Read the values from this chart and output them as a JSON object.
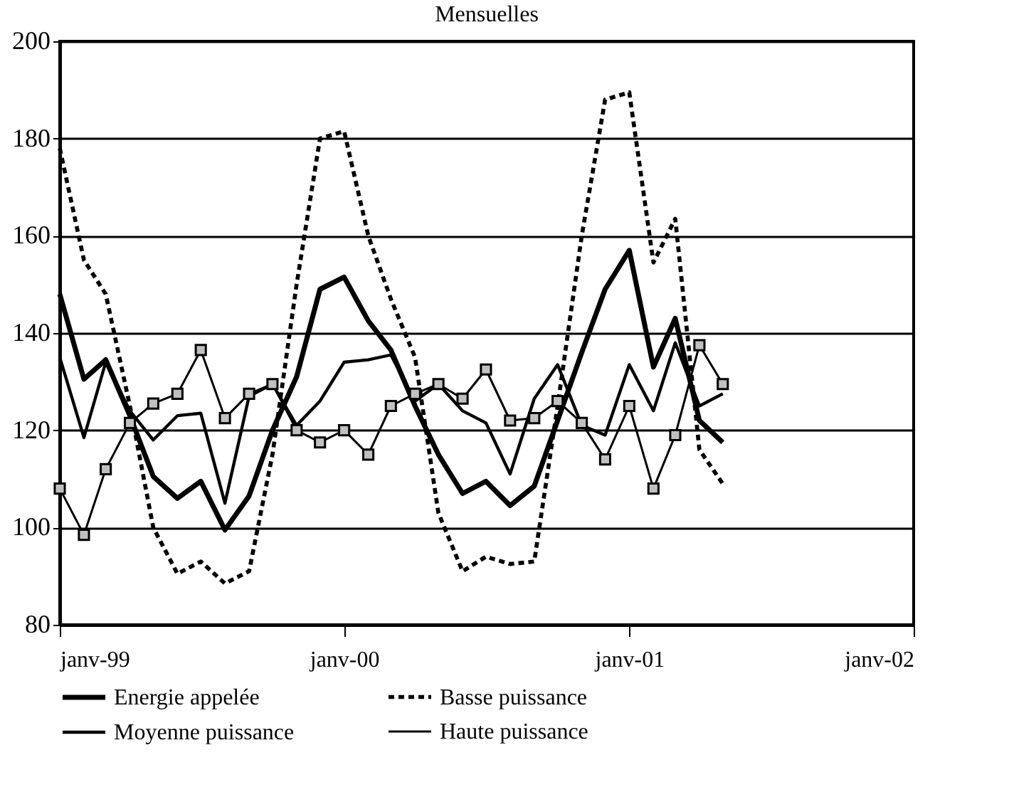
{
  "chart_data": {
    "type": "line",
    "title": "Mensuelles",
    "x": [
      "1999-01",
      "1999-02",
      "1999-03",
      "1999-04",
      "1999-05",
      "1999-06",
      "1999-07",
      "1999-08",
      "1999-09",
      "1999-10",
      "1999-11",
      "1999-12",
      "2000-01",
      "2000-02",
      "2000-03",
      "2000-04",
      "2000-05",
      "2000-06",
      "2000-07",
      "2000-08",
      "2000-09",
      "2000-10",
      "2000-11",
      "2000-12",
      "2001-01",
      "2001-02",
      "2001-03",
      "2001-04",
      "2001-05"
    ],
    "series": [
      {
        "name": "Energie appelée",
        "color": "#000000",
        "line_style": "solid",
        "marker": "none",
        "values": [
          148,
          130.5,
          134.5,
          123,
          110.5,
          106,
          109.5,
          99.5,
          106.5,
          120,
          131,
          149,
          151.5,
          142.5,
          136.5,
          125,
          115,
          107,
          109.5,
          104.5,
          108.5,
          122,
          136,
          149,
          157,
          133,
          143,
          122,
          117.5
        ]
      },
      {
        "name": "Basse puissance",
        "color": "#000000",
        "line_style": "dashed",
        "marker": "none",
        "values": [
          178,
          155,
          148,
          125,
          100,
          90.5,
          93,
          88.5,
          91,
          115,
          150,
          180,
          181.5,
          160,
          147,
          135,
          103,
          91,
          94,
          92.5,
          93,
          125,
          160,
          188,
          189.5,
          154.5,
          163.5,
          116,
          109
        ]
      },
      {
        "name": "Moyenne puissance",
        "color": "#000000",
        "line_style": "solid",
        "marker": "none",
        "values": [
          135,
          118.5,
          134,
          124,
          118,
          123,
          123.5,
          105,
          127,
          129.5,
          121,
          126,
          134,
          134.5,
          135.5,
          126,
          129.5,
          124,
          121.5,
          111,
          126.5,
          133.5,
          121,
          119,
          133.5,
          124,
          138,
          125,
          127.5
        ]
      },
      {
        "name": "Haute puissance",
        "color": "#000000",
        "line_style": "solid",
        "marker": "square",
        "values": [
          108,
          98.5,
          112,
          121.5,
          125.5,
          127.5,
          136.5,
          122.5,
          127.5,
          129.5,
          120,
          117.5,
          120,
          115,
          125,
          127.5,
          129.5,
          126.5,
          132.5,
          122,
          122.5,
          126,
          121.5,
          114,
          125,
          108,
          119,
          137.5,
          129.5
        ]
      }
    ],
    "xlim": [
      "1999-01",
      "2002-01"
    ],
    "xticks": [
      {
        "value": "1999-01",
        "label": "janv-99"
      },
      {
        "value": "2000-01",
        "label": "janv-00"
      },
      {
        "value": "2001-01",
        "label": "janv-01"
      },
      {
        "value": "2002-01",
        "label": "janv-02"
      }
    ],
    "ylim": [
      80,
      200
    ],
    "yticks": [
      80,
      100,
      120,
      140,
      160,
      180,
      200
    ],
    "grid": "y",
    "legend": "bottom"
  }
}
